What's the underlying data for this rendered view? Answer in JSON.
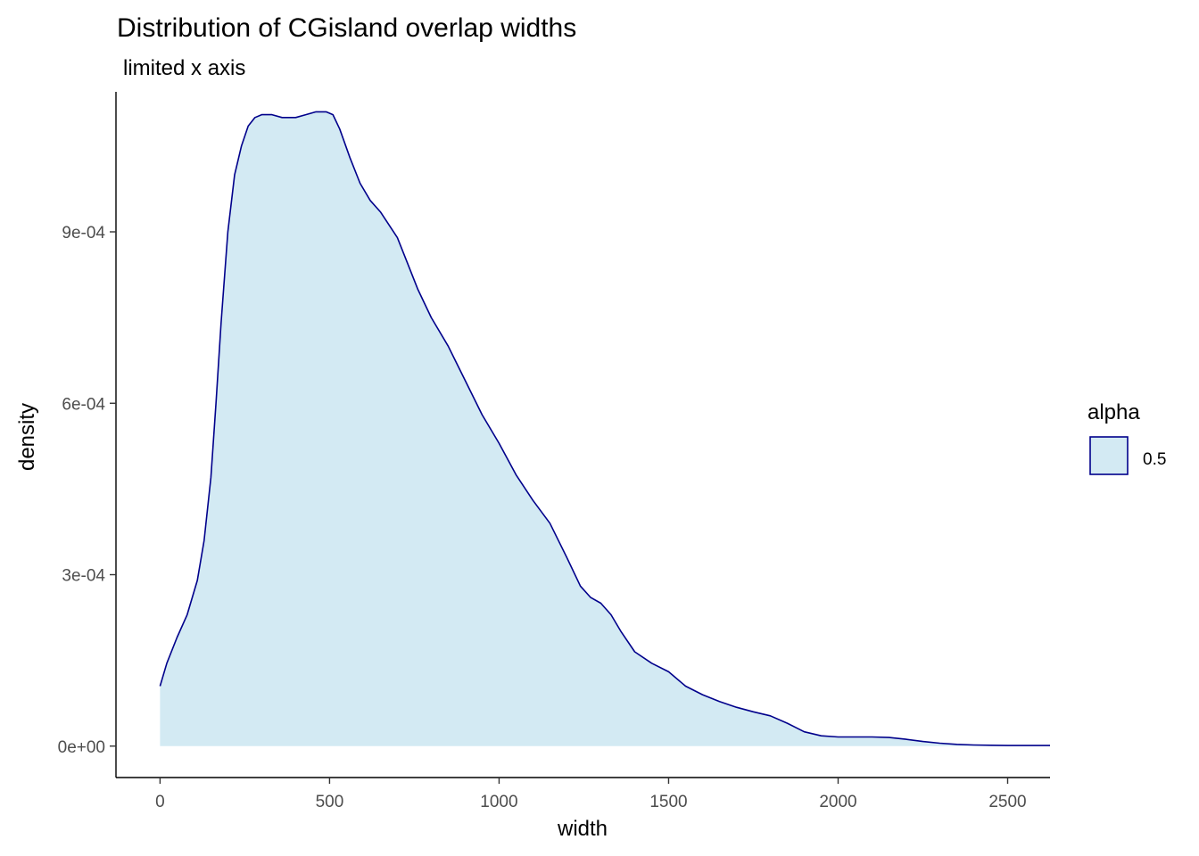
{
  "chart_data": {
    "type": "area",
    "title": "Distribution of CGisland overlap widths",
    "subtitle": "limited x axis",
    "xlabel": "width",
    "ylabel": "density",
    "xlim": [
      -130,
      2625
    ],
    "ylim": [
      -5.5e-05,
      0.001145
    ],
    "x_ticks": [
      0,
      500,
      1000,
      1500,
      2000,
      2500
    ],
    "x_tick_labels": [
      "0",
      "500",
      "1000",
      "1500",
      "2000",
      "2500"
    ],
    "y_ticks": [
      0,
      0.0003,
      0.0006,
      0.0009
    ],
    "y_tick_labels": [
      "0e+00",
      "3e-04",
      "6e-04",
      "9e-04"
    ],
    "grid": false,
    "fill_color": "#D3EAF3",
    "line_color": "#00008B",
    "legend": {
      "title": "alpha",
      "position": "right",
      "entries": [
        {
          "label": "0.5"
        }
      ]
    },
    "series": [
      {
        "x": [
          0,
          20,
          50,
          80,
          110,
          130,
          150,
          165,
          180,
          200,
          220,
          240,
          260,
          280,
          300,
          330,
          360,
          400,
          430,
          460,
          490,
          510,
          530,
          560,
          590,
          620,
          650,
          700,
          730,
          760,
          800,
          850,
          900,
          950,
          1000,
          1050,
          1100,
          1150,
          1200,
          1240,
          1270,
          1300,
          1330,
          1360,
          1400,
          1450,
          1500,
          1550,
          1600,
          1650,
          1700,
          1750,
          1800,
          1850,
          1900,
          1950,
          2000,
          2050,
          2100,
          2150,
          2200,
          2250,
          2300,
          2350,
          2400,
          2450,
          2500,
          2550,
          2625
        ],
        "y": [
          0.000105,
          0.000145,
          0.00019,
          0.00023,
          0.00029,
          0.00036,
          0.00047,
          0.0006,
          0.00074,
          0.0009,
          0.001,
          0.00105,
          0.001085,
          0.0011,
          0.001105,
          0.001105,
          0.0011,
          0.0011,
          0.001105,
          0.00111,
          0.00111,
          0.001105,
          0.00108,
          0.00103,
          0.000985,
          0.000955,
          0.000935,
          0.00089,
          0.000845,
          0.0008,
          0.00075,
          0.0007,
          0.00064,
          0.00058,
          0.00053,
          0.000475,
          0.00043,
          0.00039,
          0.00033,
          0.00028,
          0.00026,
          0.00025,
          0.00023,
          0.0002,
          0.000165,
          0.000145,
          0.00013,
          0.000105,
          9e-05,
          7.8e-05,
          6.8e-05,
          6e-05,
          5.3e-05,
          4e-05,
          2.5e-05,
          1.8e-05,
          1.6e-05,
          1.6e-05,
          1.6e-05,
          1.5e-05,
          1.2e-05,
          8e-06,
          5e-06,
          3e-06,
          2e-06,
          1.5e-06,
          1e-06,
          1e-06,
          1e-06
        ]
      }
    ]
  }
}
